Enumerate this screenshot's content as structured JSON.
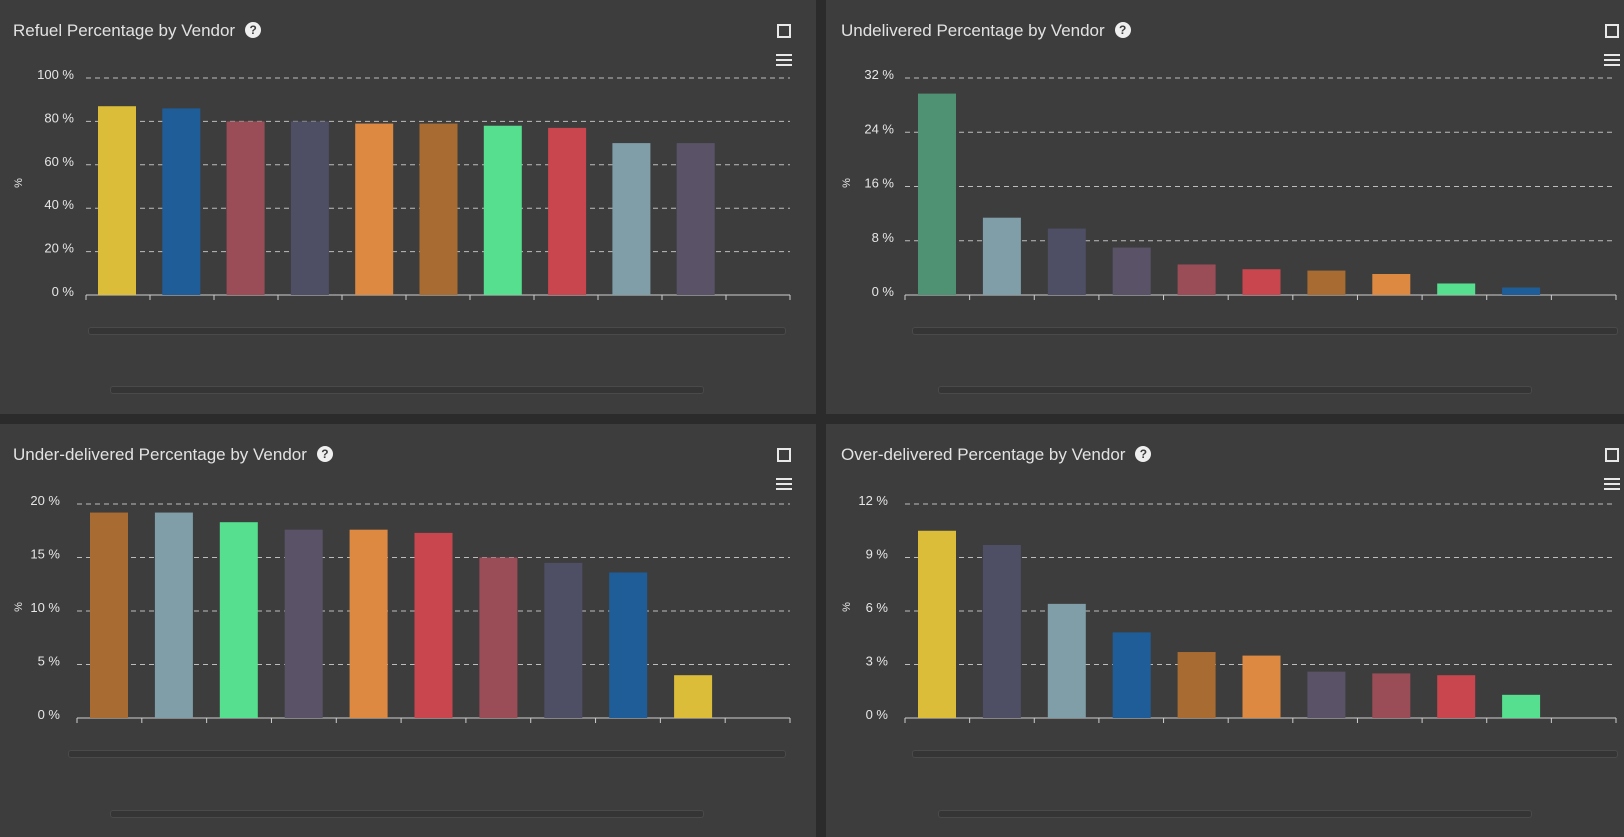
{
  "chart_data": [
    {
      "type": "bar",
      "title": "Refuel Percentage by Vendor",
      "ylabel": "%",
      "ylim": [
        0,
        100
      ],
      "yticks": [
        "0 %",
        "20 %",
        "40 %",
        "60 %",
        "80 %",
        "100 %"
      ],
      "grid": true,
      "values": [
        87,
        86,
        80,
        80,
        79,
        79,
        78,
        77,
        70,
        70
      ],
      "colors": [
        "#dbbd3a",
        "#1f5d99",
        "#9b4d57",
        "#4e4e65",
        "#dd8942",
        "#a86b31",
        "#55df8e",
        "#c9464e",
        "#7f9ea8",
        "#5a5267"
      ]
    },
    {
      "type": "bar",
      "title": "Undelivered Percentage by Vendor",
      "ylabel": "%",
      "ylim": [
        0,
        32
      ],
      "yticks": [
        "0 %",
        "8 %",
        "16 %",
        "24 %",
        "32 %"
      ],
      "grid": true,
      "values": [
        29.7,
        11.4,
        9.8,
        7,
        4.5,
        3.8,
        3.6,
        3.1,
        1.7,
        1.1
      ],
      "colors": [
        "#4f9173",
        "#7f9ea8",
        "#4e4e65",
        "#5a5267",
        "#9b4d57",
        "#c9464e",
        "#a86b31",
        "#dd8942",
        "#55df8e",
        "#1f5d99"
      ]
    },
    {
      "type": "bar",
      "title": "Under-delivered Percentage by Vendor",
      "ylabel": "%",
      "ylim": [
        0,
        20
      ],
      "yticks": [
        "0 %",
        "5 %",
        "10 %",
        "15 %",
        "20 %"
      ],
      "grid": true,
      "values": [
        19.2,
        19.2,
        18.3,
        17.6,
        17.6,
        17.3,
        15,
        14.5,
        13.6,
        4
      ],
      "colors": [
        "#a86b31",
        "#7f9ea8",
        "#55df8e",
        "#5a5267",
        "#dd8942",
        "#c9464e",
        "#9b4d57",
        "#4e4e65",
        "#1f5d99",
        "#dbbd3a"
      ]
    },
    {
      "type": "bar",
      "title": "Over-delivered Percentage by Vendor",
      "ylabel": "%",
      "ylim": [
        0,
        12
      ],
      "yticks": [
        "0 %",
        "3 %",
        "6 %",
        "9 %",
        "12 %"
      ],
      "grid": true,
      "values": [
        10.5,
        9.7,
        6.4,
        4.8,
        3.7,
        3.5,
        2.6,
        2.5,
        2.4,
        1.3
      ],
      "colors": [
        "#dbbd3a",
        "#4e4e65",
        "#7f9ea8",
        "#1f5d99",
        "#a86b31",
        "#dd8942",
        "#5a5267",
        "#9b4d57",
        "#c9464e",
        "#55df8e"
      ]
    }
  ],
  "icons": {
    "help": "help-circle-icon",
    "fullscreen": "fullscreen-icon",
    "menu": "hamburger-menu-icon"
  },
  "help_glyph": "?"
}
